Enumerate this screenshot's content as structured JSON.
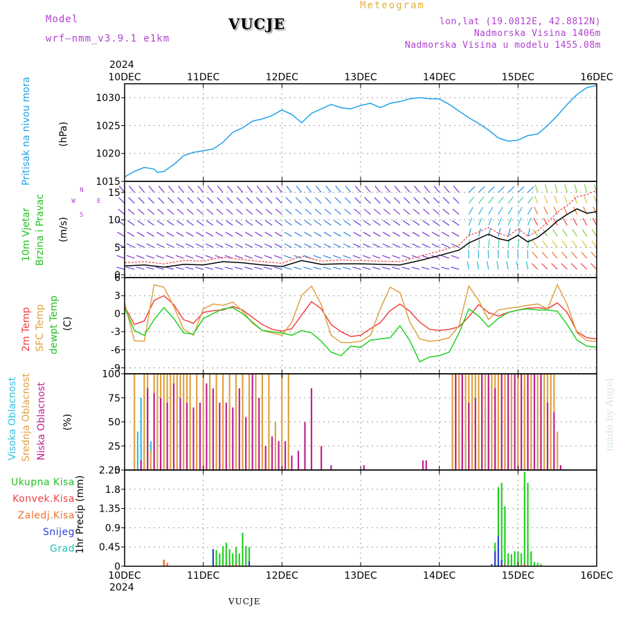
{
  "header": {
    "model_label": "Model",
    "model_name": "wrf–nmm_v3.9.1  e1km",
    "station": "VUCJE",
    "product": "Meteogram",
    "coords": "lon,lat (19.0812E, 42.8812N)",
    "altitude": "Nadmorska Visina 1406m",
    "model_altitude": "Nadmorska Visina u modelu 1455.08m",
    "credit": "made by Angel",
    "footer_station": "VUCJE",
    "year": "2024"
  },
  "colors": {
    "pressure": "#1fa0e8",
    "temp2m": "#f04040",
    "sfctemp": "#e0a040",
    "dewpt": "#20d020",
    "high_cloud": "#30c0e0",
    "mid_cloud": "#e0a040",
    "low_cloud": "#c02090",
    "total_precip": "#20d020",
    "conv_precip": "#f04040",
    "frz_precip": "#f07030",
    "snow": "#3040e0",
    "hail": "#20c0b0",
    "wind_label": "#20c020",
    "wind_dir": "#b040d0"
  },
  "x_axis": {
    "ticks": [
      "10DEC",
      "11DEC",
      "12DEC",
      "13DEC",
      "14DEC",
      "15DEC",
      "16DEC"
    ],
    "range_hours": [
      0,
      144
    ]
  },
  "chart_data": [
    {
      "type": "line",
      "panel": "pressure",
      "ylabel_name": "Pritisak na nivou mora",
      "ylabel_unit": "(hPa)",
      "ylim": [
        1015,
        1032.5
      ],
      "yticks": [
        1015,
        1020,
        1025,
        1030
      ],
      "grid": true,
      "series": [
        {
          "name": "Pritisak na nivou mora",
          "x": [
            0,
            3,
            6,
            9,
            10,
            12,
            15,
            18,
            21,
            24,
            27,
            30,
            33,
            36,
            39,
            42,
            45,
            48,
            51,
            54,
            57,
            60,
            63,
            66,
            69,
            72,
            75,
            78,
            81,
            84,
            87,
            90,
            93,
            96,
            99,
            102,
            105,
            108,
            111,
            114,
            117,
            120,
            123,
            126,
            129,
            132,
            135,
            138,
            141,
            144
          ],
          "values": [
            1015.8,
            1016.8,
            1017.5,
            1017.2,
            1016.6,
            1016.8,
            1018.0,
            1019.6,
            1020.2,
            1020.5,
            1020.8,
            1022.0,
            1023.8,
            1024.6,
            1025.8,
            1026.2,
            1026.8,
            1027.8,
            1027.0,
            1025.5,
            1027.2,
            1028.0,
            1028.8,
            1028.2,
            1028.0,
            1028.6,
            1029.0,
            1028.2,
            1029.0,
            1029.3,
            1029.8,
            1030.0,
            1029.8,
            1029.8,
            1028.8,
            1027.6,
            1026.4,
            1025.4,
            1024.2,
            1022.8,
            1022.2,
            1022.4,
            1023.2,
            1023.5,
            1025.0,
            1026.8,
            1028.8,
            1030.6,
            1031.8,
            1032.2
          ]
        }
      ]
    },
    {
      "type": "line",
      "panel": "wind",
      "ylabel_name": "10m Vjetar",
      "ylabel_name2": "Brzina i Pravac",
      "ylabel_unit": "(m/s)",
      "compass": [
        "W",
        "E",
        "N",
        "S"
      ],
      "ylim": [
        -0.5,
        17
      ],
      "yticks": [
        0,
        5,
        10,
        15
      ],
      "grid": true,
      "series": [
        {
          "name": "speed",
          "x": [
            0,
            6,
            12,
            18,
            24,
            30,
            36,
            42,
            48,
            54,
            60,
            66,
            72,
            78,
            84,
            90,
            96,
            102,
            105,
            108,
            111,
            114,
            117,
            120,
            123,
            126,
            129,
            132,
            135,
            138,
            141,
            144
          ],
          "values": [
            1.6,
            1.8,
            1.4,
            1.9,
            1.8,
            2.4,
            2.2,
            1.8,
            1.5,
            2.6,
            1.9,
            2.0,
            2.0,
            1.9,
            1.8,
            2.6,
            3.5,
            4.5,
            5.8,
            6.6,
            7.4,
            6.6,
            6.2,
            7.2,
            6.0,
            6.8,
            8.2,
            9.8,
            11.0,
            12.0,
            11.2,
            11.5
          ]
        },
        {
          "name": "gust",
          "x": [
            0,
            6,
            12,
            18,
            24,
            30,
            36,
            42,
            48,
            54,
            60,
            66,
            72,
            78,
            84,
            90,
            96,
            102,
            105,
            108,
            111,
            114,
            117,
            120,
            123,
            126,
            129,
            132,
            135,
            138,
            141,
            144
          ],
          "values": [
            2.2,
            2.4,
            2.0,
            2.6,
            2.5,
            3.2,
            2.8,
            2.4,
            2.1,
            3.4,
            2.5,
            2.7,
            2.6,
            2.5,
            2.4,
            3.4,
            4.3,
            5.4,
            7.2,
            7.8,
            8.6,
            7.6,
            7.0,
            8.4,
            7.0,
            8.0,
            9.6,
            11.4,
            12.6,
            14.2,
            14.6,
            15.4
          ]
        }
      ]
    },
    {
      "type": "line",
      "panel": "temperature",
      "ylabel_name": "2m Temp",
      "ylabel_name2": "SFC Temp",
      "ylabel_name3": "dewpt Temp",
      "ylabel_unit": "(C)",
      "ylim": [
        -10,
        6
      ],
      "yticks": [
        -9,
        -6,
        -3,
        0,
        3,
        6
      ],
      "grid": true,
      "series": [
        {
          "name": "2m Temp",
          "x": [
            0,
            3,
            6,
            9,
            12,
            15,
            18,
            21,
            24,
            27,
            30,
            33,
            36,
            39,
            42,
            45,
            48,
            51,
            54,
            57,
            60,
            63,
            66,
            69,
            72,
            75,
            78,
            81,
            84,
            87,
            90,
            93,
            96,
            99,
            102,
            105,
            108,
            111,
            114,
            117,
            120,
            123,
            126,
            129,
            132,
            135,
            138,
            141,
            144
          ],
          "values": [
            1.2,
            -1.8,
            -1.2,
            2.2,
            3.0,
            1.5,
            -1.0,
            -1.6,
            0.2,
            0.5,
            0.6,
            1.2,
            0.6,
            -0.6,
            -1.8,
            -2.6,
            -2.9,
            -2.5,
            -0.2,
            2.0,
            0.8,
            -1.8,
            -3.0,
            -3.8,
            -3.6,
            -2.5,
            -1.5,
            0.5,
            1.6,
            0.4,
            -1.4,
            -2.6,
            -2.8,
            -2.6,
            -2.2,
            -0.5,
            1.5,
            0.2,
            -0.4,
            0.2,
            0.6,
            0.9,
            1.0,
            0.8,
            1.8,
            0.2,
            -3.0,
            -4.0,
            -4.2
          ]
        },
        {
          "name": "SFC Temp",
          "x": [
            0,
            3,
            6,
            9,
            12,
            15,
            18,
            21,
            24,
            27,
            30,
            33,
            36,
            39,
            42,
            45,
            48,
            51,
            54,
            57,
            60,
            63,
            66,
            69,
            72,
            75,
            78,
            81,
            84,
            87,
            90,
            93,
            96,
            99,
            102,
            105,
            108,
            111,
            114,
            117,
            120,
            123,
            126,
            129,
            132,
            135,
            138,
            141,
            144
          ],
          "values": [
            1.8,
            -4.5,
            -4.6,
            4.8,
            4.4,
            1.2,
            -2.6,
            -3.6,
            0.8,
            1.6,
            1.4,
            1.9,
            0.4,
            -1.6,
            -2.8,
            -3.2,
            -3.6,
            -1.4,
            3.0,
            4.6,
            1.5,
            -3.6,
            -4.8,
            -4.8,
            -4.6,
            -3.6,
            0.8,
            4.4,
            3.5,
            -1.4,
            -4.2,
            -4.6,
            -4.4,
            -4.0,
            -2.0,
            4.6,
            2.2,
            -1.0,
            0.6,
            0.9,
            1.1,
            1.4,
            1.6,
            0.8,
            4.8,
            1.5,
            -3.2,
            -4.5,
            -4.6
          ]
        },
        {
          "name": "dewpt Temp",
          "x": [
            0,
            3,
            6,
            9,
            12,
            15,
            18,
            21,
            24,
            27,
            30,
            33,
            36,
            39,
            42,
            45,
            48,
            51,
            54,
            57,
            60,
            63,
            66,
            69,
            72,
            75,
            78,
            81,
            84,
            87,
            90,
            93,
            96,
            99,
            102,
            105,
            108,
            111,
            114,
            117,
            120,
            123,
            126,
            129,
            132,
            135,
            138,
            141,
            144
          ],
          "values": [
            1.0,
            -2.8,
            -3.6,
            -1.0,
            1.0,
            -0.8,
            -3.2,
            -3.4,
            -0.8,
            0.0,
            0.8,
            1.0,
            0.0,
            -1.4,
            -2.8,
            -3.0,
            -3.2,
            -3.6,
            -2.8,
            -3.2,
            -4.6,
            -6.4,
            -7.0,
            -5.4,
            -5.6,
            -4.4,
            -4.2,
            -4.0,
            -2.0,
            -4.5,
            -8.0,
            -7.2,
            -7.0,
            -6.4,
            -3.2,
            0.8,
            -0.4,
            -2.2,
            -0.8,
            0.2,
            0.6,
            0.8,
            0.6,
            0.6,
            0.4,
            -1.8,
            -4.4,
            -5.4,
            -5.6
          ]
        }
      ]
    },
    {
      "type": "bar",
      "panel": "cloud",
      "ylabel_name": "Visoka Oblacnost",
      "ylabel_name2": "Srednja Oblacnost",
      "ylabel_name3": "Niska Oblacnost",
      "ylabel_unit": "(%)",
      "ylim": [
        0,
        100
      ],
      "yticks": [
        0,
        25,
        50,
        75,
        100
      ],
      "grid": true,
      "series": [
        {
          "name": "Visoka Oblacnost",
          "x": [
            4,
            5,
            6,
            8,
            9,
            100,
            102,
            104,
            106,
            108,
            110,
            112,
            114,
            116,
            118,
            120,
            122,
            124,
            126
          ],
          "values": [
            40,
            75,
            30,
            30,
            20,
            55,
            40,
            30,
            50,
            45,
            65,
            70,
            60,
            45,
            55,
            80,
            85,
            75,
            70
          ]
        },
        {
          "name": "Srednja Oblacnost",
          "x": [
            3,
            6,
            7,
            8,
            9,
            10,
            11,
            12,
            13,
            14,
            15,
            16,
            17,
            18,
            19,
            20,
            22,
            24,
            26,
            28,
            30,
            32,
            34,
            36,
            38,
            40,
            42,
            44,
            46,
            48,
            50,
            100,
            101,
            102,
            103,
            104,
            105,
            106,
            107,
            108,
            109,
            110,
            111,
            112,
            113,
            114,
            115,
            116,
            117,
            118,
            119,
            120,
            121,
            122,
            123,
            124,
            125,
            126,
            127,
            128,
            129,
            130,
            131,
            132
          ],
          "values": [
            100,
            100,
            100,
            20,
            100,
            100,
            100,
            100,
            100,
            100,
            100,
            100,
            100,
            100,
            100,
            100,
            100,
            100,
            100,
            100,
            100,
            100,
            100,
            100,
            100,
            100,
            100,
            100,
            50,
            100,
            100,
            100,
            100,
            100,
            100,
            100,
            100,
            100,
            100,
            100,
            100,
            100,
            100,
            100,
            100,
            100,
            100,
            100,
            100,
            100,
            100,
            100,
            100,
            100,
            100,
            100,
            100,
            100,
            100,
            100,
            100,
            100,
            100,
            40
          ]
        },
        {
          "name": "Niska Oblacnost",
          "x": [
            5,
            7,
            9,
            11,
            13,
            15,
            17,
            19,
            21,
            23,
            25,
            27,
            29,
            31,
            33,
            35,
            37,
            39,
            41,
            43,
            45,
            47,
            49,
            51,
            53,
            55,
            57,
            60,
            63,
            73,
            91,
            92,
            101,
            103,
            105,
            107,
            109,
            111,
            113,
            115,
            117,
            119,
            121,
            123,
            125,
            127,
            129,
            131,
            133
          ],
          "values": [
            10,
            85,
            80,
            75,
            70,
            90,
            75,
            70,
            65,
            70,
            90,
            85,
            70,
            70,
            65,
            85,
            55,
            100,
            75,
            25,
            35,
            30,
            30,
            15,
            20,
            50,
            85,
            25,
            5,
            5,
            10,
            10,
            100,
            100,
            70,
            75,
            100,
            100,
            85,
            100,
            100,
            100,
            100,
            100,
            100,
            100,
            70,
            60,
            5
          ]
        }
      ]
    },
    {
      "type": "bar",
      "panel": "precip",
      "ylabel_name": "1hr Precip",
      "ylabel_unit": "(mm)",
      "ylim": [
        0,
        2.25
      ],
      "yticks": [
        0,
        0.45,
        0.9,
        1.35,
        1.8,
        2.25
      ],
      "grid": true,
      "legend": [
        "Ukupna Kisa",
        "Konvek.Kisa",
        "Zaledj.Kisa",
        "Snijeg",
        "Grad"
      ],
      "series": [
        {
          "name": "Ukupna Kisa",
          "x": [
            27,
            28,
            29,
            30,
            31,
            32,
            33,
            34,
            35,
            36,
            37,
            38,
            113,
            114,
            115,
            116,
            117,
            118,
            119,
            120,
            121,
            122,
            123,
            124,
            125,
            126,
            127
          ],
          "values": [
            0.4,
            0.38,
            0.3,
            0.47,
            0.55,
            0.4,
            0.3,
            0.45,
            0.3,
            0.78,
            0.47,
            0.45,
            0.55,
            1.85,
            1.95,
            1.4,
            0.3,
            0.28,
            0.35,
            0.35,
            0.3,
            2.2,
            1.95,
            0.35,
            0.1,
            0.08,
            0.05
          ]
        },
        {
          "name": "Konvek.Kisa",
          "x": [
            12,
            28,
            32,
            34,
            114,
            116,
            118,
            122
          ],
          "values": [
            0.15,
            0.02,
            0.05,
            0.05,
            0.02,
            0.05,
            0.02,
            0.05
          ]
        },
        {
          "name": "Zaledj.Kisa",
          "x": [
            12,
            13
          ],
          "values": [
            0.14,
            0.08
          ]
        },
        {
          "name": "Snijeg",
          "x": [
            27,
            38,
            112,
            113,
            114,
            115
          ],
          "values": [
            0.4,
            0.12,
            0.05,
            0.35,
            0.7,
            0.15
          ]
        },
        {
          "name": "Grad",
          "x": [
            45,
            46,
            47,
            48
          ],
          "values": [
            0.02,
            0.02,
            0.02,
            0.02
          ]
        }
      ]
    }
  ]
}
